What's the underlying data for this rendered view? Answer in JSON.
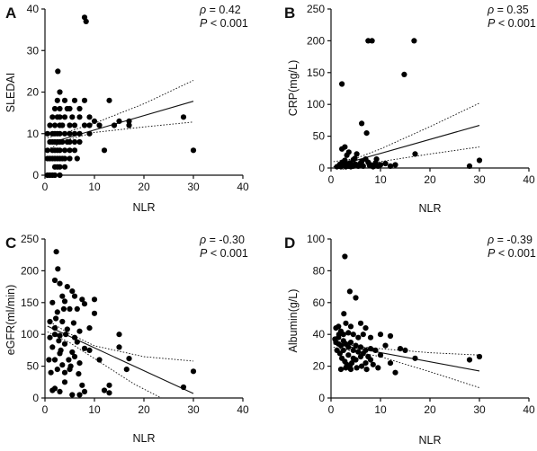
{
  "chart_data": [
    {
      "type": "scatter",
      "panel_label": "A",
      "xlabel": "NLR",
      "ylabel": "SLEDAI",
      "xlim": [
        0,
        40
      ],
      "ylim": [
        0,
        40
      ],
      "xticks": [
        "0",
        "10",
        "20",
        "30",
        "40"
      ],
      "yticks": [
        "0",
        "10",
        "20",
        "30",
        "40"
      ],
      "rho_text": "= 0.42",
      "p_text": "< 0.001",
      "grid": false,
      "fit": {
        "x": [
          0.5,
          30
        ],
        "y": [
          7.6,
          17.8
        ]
      },
      "ci_upper": [
        [
          0.5,
          9.0
        ],
        [
          5,
          10.6
        ],
        [
          10,
          12.5
        ],
        [
          20,
          17.2
        ],
        [
          30,
          22.8
        ]
      ],
      "ci_lower": [
        [
          0.5,
          6.2
        ],
        [
          5,
          8.7
        ],
        [
          10,
          10.3
        ],
        [
          20,
          11.6
        ],
        [
          30,
          12.8
        ]
      ],
      "points": [
        [
          8,
          38
        ],
        [
          8.3,
          37
        ],
        [
          2.6,
          25
        ],
        [
          30,
          6
        ],
        [
          28,
          14
        ],
        [
          17,
          13
        ],
        [
          17,
          12
        ],
        [
          15,
          13
        ],
        [
          13,
          18
        ],
        [
          14,
          12
        ],
        [
          10,
          13
        ],
        [
          11,
          12
        ],
        [
          12,
          6
        ],
        [
          9,
          10
        ],
        [
          9,
          14
        ],
        [
          9,
          12
        ],
        [
          8,
          18
        ],
        [
          8,
          12
        ],
        [
          7,
          14
        ],
        [
          7,
          16
        ],
        [
          7,
          10
        ],
        [
          7,
          8
        ],
        [
          6.5,
          4
        ],
        [
          6,
          18
        ],
        [
          6,
          12
        ],
        [
          6,
          10
        ],
        [
          6,
          8
        ],
        [
          6,
          6
        ],
        [
          5.5,
          14
        ],
        [
          5,
          16
        ],
        [
          5,
          12
        ],
        [
          5,
          10
        ],
        [
          5,
          8
        ],
        [
          5,
          6
        ],
        [
          5,
          4
        ],
        [
          4.5,
          16
        ],
        [
          4.5,
          8
        ],
        [
          4,
          18
        ],
        [
          4,
          14
        ],
        [
          4,
          10
        ],
        [
          4,
          6
        ],
        [
          4,
          4
        ],
        [
          4,
          2
        ],
        [
          3.5,
          12
        ],
        [
          3.5,
          8
        ],
        [
          3.5,
          4
        ],
        [
          3,
          20
        ],
        [
          3,
          16
        ],
        [
          3,
          14
        ],
        [
          3,
          12
        ],
        [
          3,
          10
        ],
        [
          3,
          8
        ],
        [
          3,
          6
        ],
        [
          3,
          4
        ],
        [
          3,
          2
        ],
        [
          3,
          0
        ],
        [
          2.5,
          18
        ],
        [
          2.5,
          14
        ],
        [
          2.5,
          10
        ],
        [
          2.5,
          8
        ],
        [
          2.5,
          6
        ],
        [
          2.5,
          4
        ],
        [
          2.5,
          2
        ],
        [
          2,
          16
        ],
        [
          2,
          12
        ],
        [
          2,
          10
        ],
        [
          2,
          8
        ],
        [
          2,
          6
        ],
        [
          2,
          4
        ],
        [
          2,
          2
        ],
        [
          2,
          0
        ],
        [
          1.5,
          14
        ],
        [
          1.5,
          10
        ],
        [
          1.5,
          8
        ],
        [
          1.5,
          6
        ],
        [
          1.5,
          4
        ],
        [
          1.5,
          0
        ],
        [
          1,
          12
        ],
        [
          1,
          8
        ],
        [
          1,
          4
        ],
        [
          1,
          0
        ],
        [
          0.5,
          10
        ],
        [
          0.5,
          6
        ],
        [
          0.5,
          4
        ],
        [
          0.5,
          0
        ]
      ]
    },
    {
      "type": "scatter",
      "panel_label": "B",
      "xlabel": "NLR",
      "ylabel": "CRP(mg/L)",
      "xlim": [
        0,
        40
      ],
      "ylim": [
        0,
        250
      ],
      "xticks": [
        "0",
        "10",
        "20",
        "30",
        "40"
      ],
      "yticks": [
        "0",
        "50",
        "100",
        "150",
        "200",
        "250"
      ],
      "rho_text": "= 0.35",
      "p_text": "< 0.001",
      "grid": false,
      "fit": {
        "x": [
          0.5,
          30
        ],
        "y": [
          2,
          67
        ]
      },
      "ci_upper": [
        [
          0.5,
          10
        ],
        [
          5,
          15
        ],
        [
          10,
          30
        ],
        [
          20,
          65
        ],
        [
          30,
          102
        ]
      ],
      "ci_lower": [
        [
          0.5,
          -6
        ],
        [
          5,
          2
        ],
        [
          10,
          10
        ],
        [
          20,
          22
        ],
        [
          30,
          33
        ]
      ],
      "points": [
        [
          7.5,
          200
        ],
        [
          8.3,
          200
        ],
        [
          16.8,
          200
        ],
        [
          2.2,
          132
        ],
        [
          14.8,
          147
        ],
        [
          6.2,
          70
        ],
        [
          7.2,
          55
        ],
        [
          17,
          22
        ],
        [
          30,
          12
        ],
        [
          28,
          3
        ],
        [
          12,
          3
        ],
        [
          2.2,
          30
        ],
        [
          2.8,
          33
        ],
        [
          3.2,
          20
        ],
        [
          3.6,
          25
        ],
        [
          4.5,
          13
        ],
        [
          4.8,
          15
        ],
        [
          5.2,
          22
        ],
        [
          6,
          8
        ],
        [
          6.2,
          10
        ],
        [
          7,
          14
        ],
        [
          7.5,
          9
        ],
        [
          8,
          5
        ],
        [
          9,
          8
        ],
        [
          9.2,
          14
        ],
        [
          10,
          5
        ],
        [
          11,
          7
        ],
        [
          13,
          5
        ],
        [
          1.2,
          2
        ],
        [
          1.5,
          3
        ],
        [
          1.8,
          6
        ],
        [
          2,
          2
        ],
        [
          2.3,
          9
        ],
        [
          2.5,
          4
        ],
        [
          2.8,
          12
        ],
        [
          3,
          2
        ],
        [
          3.3,
          6
        ],
        [
          3.5,
          3
        ],
        [
          3.8,
          8
        ],
        [
          4,
          2
        ],
        [
          4.2,
          5
        ],
        [
          4.5,
          3
        ],
        [
          5,
          6
        ],
        [
          5.5,
          3
        ],
        [
          6.5,
          3
        ],
        [
          7.8,
          4
        ],
        [
          8.5,
          2
        ],
        [
          9.5,
          3
        ]
      ]
    },
    {
      "type": "scatter",
      "panel_label": "C",
      "xlabel": "NLR",
      "ylabel": "eGFR(ml/min)",
      "xlim": [
        0,
        40
      ],
      "ylim": [
        0,
        250
      ],
      "xticks": [
        "0",
        "10",
        "20",
        "30",
        "40"
      ],
      "yticks": [
        "0",
        "50",
        "100",
        "150",
        "200",
        "250"
      ],
      "rho_text": "= -0.30",
      "p_text": "< 0.001",
      "grid": false,
      "fit": {
        "x": [
          0.5,
          30
        ],
        "y": [
          113,
          7
        ]
      },
      "ci_upper": [
        [
          0.5,
          122
        ],
        [
          5,
          101
        ],
        [
          10,
          82
        ],
        [
          20,
          65
        ],
        [
          30,
          58
        ]
      ],
      "ci_lower": [
        [
          0.5,
          104
        ],
        [
          5,
          87
        ],
        [
          10,
          62
        ],
        [
          18,
          22
        ],
        [
          23.5,
          0
        ]
      ],
      "points": [
        [
          2.3,
          230
        ],
        [
          2.6,
          203
        ],
        [
          2,
          185
        ],
        [
          3,
          180
        ],
        [
          4.5,
          175
        ],
        [
          5.5,
          168
        ],
        [
          6,
          160
        ],
        [
          7.5,
          155
        ],
        [
          10,
          155
        ],
        [
          3.5,
          160
        ],
        [
          1.5,
          150
        ],
        [
          4,
          152
        ],
        [
          5,
          140
        ],
        [
          6.5,
          140
        ],
        [
          8,
          148
        ],
        [
          10,
          133
        ],
        [
          2.5,
          135
        ],
        [
          3.5,
          120
        ],
        [
          7,
          105
        ],
        [
          9,
          110
        ],
        [
          4.5,
          108
        ],
        [
          1,
          120
        ],
        [
          2,
          110
        ],
        [
          3,
          98
        ],
        [
          6,
          95
        ],
        [
          6.5,
          88
        ],
        [
          8,
          78
        ],
        [
          9,
          75
        ],
        [
          15,
          100
        ],
        [
          15,
          80
        ],
        [
          17,
          62
        ],
        [
          16.5,
          45
        ],
        [
          30,
          42
        ],
        [
          28,
          17
        ],
        [
          13,
          20
        ],
        [
          12,
          12
        ],
        [
          13,
          8
        ],
        [
          5,
          45
        ],
        [
          4,
          40
        ],
        [
          2,
          60
        ],
        [
          3,
          70
        ],
        [
          5.5,
          72
        ],
        [
          7,
          55
        ],
        [
          1.5,
          80
        ],
        [
          4,
          85
        ],
        [
          6,
          65
        ],
        [
          2.5,
          45
        ],
        [
          3.5,
          52
        ],
        [
          1,
          95
        ],
        [
          2,
          100
        ],
        [
          2.8,
          90
        ],
        [
          3.2,
          75
        ],
        [
          4.8,
          60
        ],
        [
          5.2,
          50
        ],
        [
          6.8,
          38
        ],
        [
          7.5,
          20
        ],
        [
          8,
          10
        ],
        [
          2,
          15
        ],
        [
          3,
          10
        ],
        [
          1.5,
          12
        ],
        [
          4,
          25
        ],
        [
          5.5,
          5
        ],
        [
          7,
          5
        ],
        [
          2.2,
          125
        ],
        [
          3.8,
          140
        ],
        [
          5.8,
          118
        ],
        [
          4.2,
          100
        ],
        [
          0.8,
          60
        ],
        [
          1.2,
          40
        ],
        [
          11,
          60
        ]
      ]
    },
    {
      "type": "scatter",
      "panel_label": "D",
      "xlabel": "NLR",
      "ylabel": "Albumin(g/L)",
      "xlim": [
        0,
        40
      ],
      "ylim": [
        0,
        100
      ],
      "xticks": [
        "0",
        "10",
        "20",
        "30",
        "40"
      ],
      "yticks": [
        "0",
        "20",
        "40",
        "60",
        "80",
        "100"
      ],
      "rho_text": "= -0.39",
      "p_text": "< 0.001",
      "grid": false,
      "fit": {
        "x": [
          0.5,
          30
        ],
        "y": [
          34,
          17
        ]
      },
      "ci_upper": [
        [
          0.5,
          36
        ],
        [
          5,
          32.5
        ],
        [
          10,
          31
        ],
        [
          20,
          28.5
        ],
        [
          30,
          27
        ]
      ],
      "ci_lower": [
        [
          0.5,
          32
        ],
        [
          5,
          29
        ],
        [
          10,
          26
        ],
        [
          20,
          16.5
        ],
        [
          30,
          6.5
        ]
      ],
      "points": [
        [
          2.8,
          89
        ],
        [
          3.8,
          67
        ],
        [
          5,
          63
        ],
        [
          2.6,
          53
        ],
        [
          1.5,
          45
        ],
        [
          1,
          44
        ],
        [
          3,
          47
        ],
        [
          4,
          45
        ],
        [
          6,
          47
        ],
        [
          7,
          44
        ],
        [
          2,
          42
        ],
        [
          2.5,
          40
        ],
        [
          3.5,
          41
        ],
        [
          4.5,
          40
        ],
        [
          5.5,
          38
        ],
        [
          6.5,
          40
        ],
        [
          8,
          38
        ],
        [
          10,
          40
        ],
        [
          12,
          39
        ],
        [
          15,
          30
        ],
        [
          17,
          25
        ],
        [
          30,
          26
        ],
        [
          28,
          24
        ],
        [
          13,
          16
        ],
        [
          12,
          22
        ],
        [
          10,
          27
        ],
        [
          9,
          30
        ],
        [
          11,
          33
        ],
        [
          14,
          31
        ],
        [
          1,
          35
        ],
        [
          1.5,
          34
        ],
        [
          2,
          33
        ],
        [
          2.5,
          36
        ],
        [
          3,
          34
        ],
        [
          3.5,
          32
        ],
        [
          4,
          35
        ],
        [
          4.5,
          30
        ],
        [
          5,
          33
        ],
        [
          5.5,
          29
        ],
        [
          6,
          32
        ],
        [
          6.5,
          28
        ],
        [
          7,
          30
        ],
        [
          7.5,
          26
        ],
        [
          8,
          31
        ],
        [
          1.2,
          30
        ],
        [
          1.8,
          28
        ],
        [
          2.2,
          25
        ],
        [
          2.8,
          23
        ],
        [
          3.2,
          21
        ],
        [
          3.8,
          20
        ],
        [
          4.2,
          22
        ],
        [
          5.2,
          19
        ],
        [
          6.2,
          20
        ],
        [
          7.2,
          18
        ],
        [
          8.5,
          21
        ],
        [
          9.5,
          19
        ],
        [
          2,
          18
        ],
        [
          3,
          19
        ],
        [
          4,
          18
        ],
        [
          5,
          24
        ],
        [
          6,
          26
        ],
        [
          7,
          22
        ],
        [
          8,
          24
        ],
        [
          1.5,
          38
        ],
        [
          2.5,
          30
        ],
        [
          3.5,
          27
        ],
        [
          4.5,
          25
        ],
        [
          0.8,
          37
        ],
        [
          1.6,
          40
        ]
      ]
    }
  ]
}
